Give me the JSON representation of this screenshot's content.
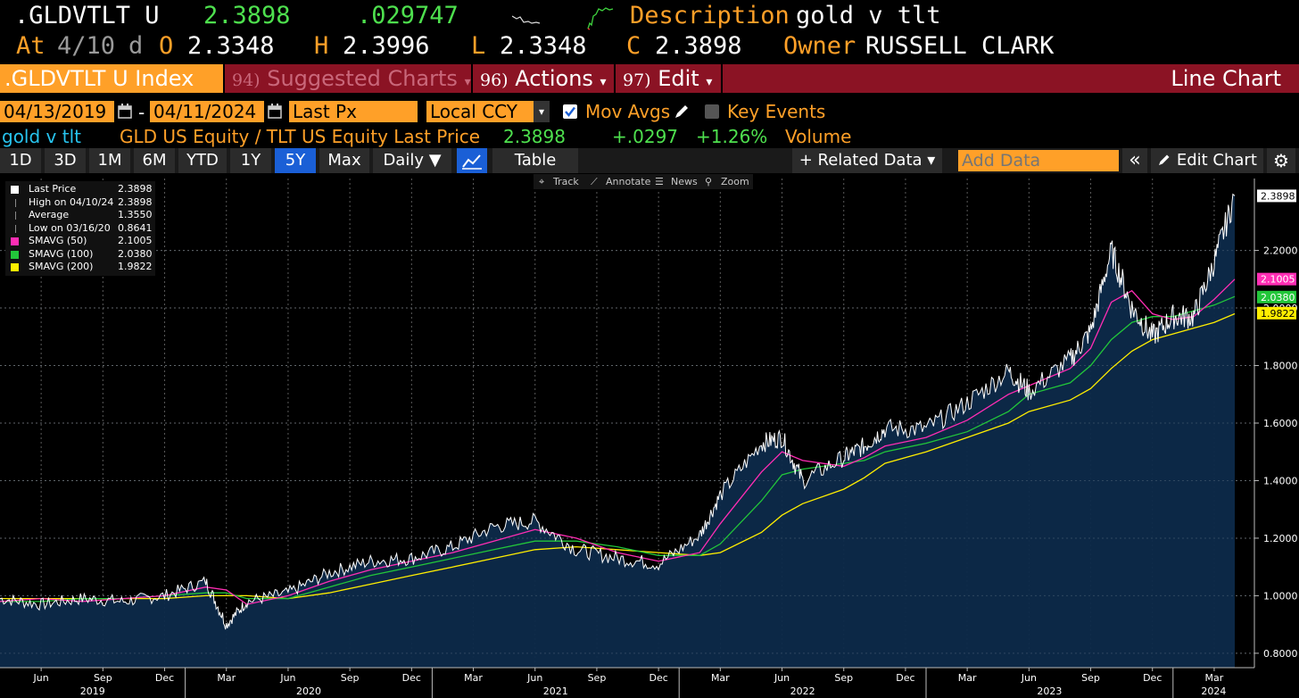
{
  "header": {
    "ticker": ".GLDVTLT U",
    "last": "2.3898",
    "change": ".029747",
    "desc_label": "Description",
    "desc_value": "gold v tlt",
    "at_label": "At",
    "at_date": "4/10",
    "at_suffix": "d",
    "open_label": "O",
    "open": "2.3348",
    "high_label": "H",
    "high": "2.3996",
    "low_label": "L",
    "low": "2.3348",
    "close_label": "C",
    "close": "2.3898",
    "owner_label": "Owner",
    "owner": "RUSSELL CLARK"
  },
  "menubar": {
    "security": ".GLDVTLT U Index",
    "suggested_num": "94)",
    "suggested": "Suggested Charts",
    "actions_num": "96)",
    "actions": "Actions",
    "edit_num": "97)",
    "edit": "Edit",
    "chart_type": "Line Chart"
  },
  "range": {
    "start": "04/13/2019",
    "dash": "-",
    "end": "04/11/2024",
    "field": "Last Px",
    "currency": "Local CCY",
    "mov_avgs": "Mov Avgs",
    "key_events": "Key Events"
  },
  "info": {
    "name": "gold v tlt",
    "formula": "GLD US Equity / TLT US Equity Last Price",
    "price": "2.3898",
    "chg": "+.0297",
    "pct": "+1.26%",
    "volume": "Volume"
  },
  "periods": [
    "1D",
    "3D",
    "1M",
    "6M",
    "YTD",
    "1Y",
    "5Y",
    "Max"
  ],
  "selected_period": "5Y",
  "toolbar": {
    "frequency": "Daily ▼",
    "table": "Table",
    "related": "+ Related Data ▾",
    "add_data_placeholder": "Add Data",
    "edit_chart": "Edit Chart"
  },
  "chart_tools": {
    "track": "Track",
    "annotate": "Annotate",
    "news": "News",
    "zoom": "Zoom"
  },
  "legend": [
    {
      "label": "Last Price",
      "value": "2.3898",
      "color": "#ffffff"
    },
    {
      "label": "High on 04/10/24",
      "value": "2.3898",
      "color": "#888888"
    },
    {
      "label": "Average",
      "value": "1.3550",
      "color": "#888888"
    },
    {
      "label": "Low on 03/16/20",
      "value": "0.8641",
      "color": "#888888"
    },
    {
      "label": "SMAVG (50)",
      "value": "2.1005",
      "color": "#ff2db4"
    },
    {
      "label": "SMAVG (100)",
      "value": "2.0380",
      "color": "#22c63a"
    },
    {
      "label": "SMAVG (200)",
      "value": "1.9822",
      "color": "#ffee00"
    }
  ],
  "chart_data": {
    "type": "area",
    "ylim": [
      0.75,
      2.45
    ],
    "y_ticks": [
      "0.8000",
      "1.0000",
      "1.2000",
      "1.4000",
      "1.6000",
      "1.8000",
      "2.0000",
      "2.2000"
    ],
    "x_month_labels": [
      "Jun",
      "Sep",
      "Dec",
      "Mar",
      "Jun",
      "Sep",
      "Dec",
      "Mar",
      "Jun",
      "Sep",
      "Dec",
      "Mar",
      "Jun",
      "Sep",
      "Dec",
      "Mar",
      "Jun",
      "Sep",
      "Dec",
      "Mar"
    ],
    "x_year_labels": [
      "2019",
      "2020",
      "2021",
      "2022",
      "2023",
      "2024"
    ],
    "x": [
      "2019-04",
      "2019-06",
      "2019-08",
      "2019-10",
      "2019-12",
      "2020-02",
      "2020-03",
      "2020-04",
      "2020-06",
      "2020-08",
      "2020-10",
      "2020-12",
      "2021-02",
      "2021-04",
      "2021-06",
      "2021-08",
      "2021-10",
      "2021-12",
      "2022-02",
      "2022-03",
      "2022-05",
      "2022-06",
      "2022-07",
      "2022-09",
      "2022-10",
      "2022-11",
      "2023-01",
      "2023-03",
      "2023-05",
      "2023-06",
      "2023-08",
      "2023-09",
      "2023-10",
      "2023-11",
      "2023-12",
      "2024-01",
      "2024-02",
      "2024-03",
      "2024-04"
    ],
    "series": [
      {
        "name": "Last Price",
        "color": "#ffffff",
        "values": [
          0.99,
          0.97,
          0.99,
          0.98,
          1.0,
          1.05,
          0.9,
          0.98,
          1.01,
          1.08,
          1.12,
          1.13,
          1.17,
          1.24,
          1.26,
          1.16,
          1.13,
          1.11,
          1.21,
          1.35,
          1.53,
          1.55,
          1.4,
          1.48,
          1.52,
          1.58,
          1.58,
          1.67,
          1.78,
          1.71,
          1.82,
          1.92,
          2.2,
          2.0,
          1.9,
          1.97,
          1.97,
          2.16,
          2.39
        ]
      },
      {
        "name": "SMAVG (50)",
        "color": "#ff2db4",
        "values": [
          0.98,
          0.99,
          0.98,
          0.99,
          1.0,
          1.03,
          1.02,
          0.97,
          1.0,
          1.05,
          1.09,
          1.12,
          1.15,
          1.19,
          1.23,
          1.2,
          1.15,
          1.12,
          1.15,
          1.25,
          1.43,
          1.5,
          1.47,
          1.45,
          1.48,
          1.52,
          1.55,
          1.61,
          1.7,
          1.73,
          1.79,
          1.86,
          2.02,
          2.06,
          1.98,
          1.96,
          1.97,
          2.03,
          2.1
        ]
      },
      {
        "name": "SMAVG (100)",
        "color": "#22c63a",
        "values": [
          0.98,
          0.98,
          0.99,
          0.99,
          1.0,
          1.01,
          1.01,
          0.99,
          0.99,
          1.03,
          1.07,
          1.1,
          1.13,
          1.16,
          1.19,
          1.19,
          1.17,
          1.14,
          1.14,
          1.18,
          1.33,
          1.42,
          1.44,
          1.46,
          1.47,
          1.5,
          1.53,
          1.57,
          1.64,
          1.7,
          1.74,
          1.8,
          1.89,
          1.95,
          1.97,
          1.97,
          1.99,
          2.01,
          2.04
        ]
      },
      {
        "name": "SMAVG (200)",
        "color": "#ffee00",
        "values": [
          0.99,
          0.99,
          0.99,
          0.99,
          0.99,
          1.0,
          1.0,
          1.0,
          0.99,
          1.01,
          1.04,
          1.07,
          1.1,
          1.13,
          1.16,
          1.17,
          1.16,
          1.15,
          1.14,
          1.15,
          1.22,
          1.28,
          1.32,
          1.37,
          1.41,
          1.46,
          1.5,
          1.55,
          1.6,
          1.64,
          1.68,
          1.72,
          1.79,
          1.85,
          1.89,
          1.91,
          1.93,
          1.95,
          1.98
        ]
      }
    ],
    "price_tags": [
      {
        "text": "2.3898",
        "value": 2.3898,
        "bg": "#ffffff",
        "fg": "#000000"
      },
      {
        "text": "2.1005",
        "value": 2.1005,
        "bg": "#ff2db4",
        "fg": "#ffffff"
      },
      {
        "text": "2.0380",
        "value": 2.038,
        "bg": "#22c63a",
        "fg": "#ffffff"
      },
      {
        "text": "1.9822",
        "value": 1.9822,
        "bg": "#ffee00",
        "fg": "#000000"
      }
    ],
    "grid": true
  }
}
